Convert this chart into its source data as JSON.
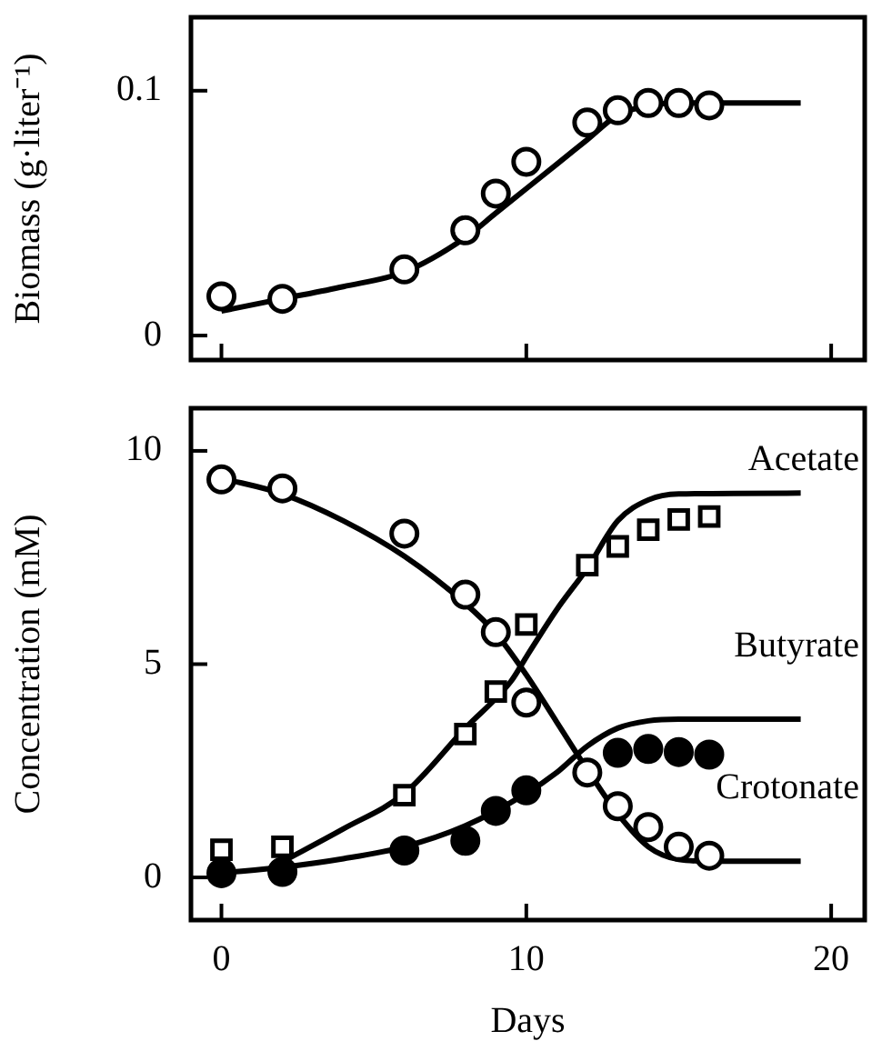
{
  "chart_data": [
    {
      "type": "scatter",
      "ylabel": "Biomass (g·liter⁻¹)",
      "xlim": [
        -1,
        21.1
      ],
      "ylim": [
        -0.01,
        0.13
      ],
      "xticks": [
        0,
        10,
        20
      ],
      "yticks": [
        0,
        0.1
      ],
      "tick_labels": "y",
      "legend": false,
      "grid": false,
      "series": [
        {
          "type": "scatter",
          "marker": "circle",
          "color": "#ffffff",
          "x": [
            0,
            2,
            6,
            8,
            9,
            10,
            12,
            13,
            14,
            15,
            16
          ],
          "values": [
            0.016,
            0.015,
            0.027,
            0.043,
            0.058,
            0.071,
            0.087,
            0.092,
            0.095,
            0.095,
            0.094
          ]
        },
        {
          "type": "line",
          "marker": "none",
          "color": "#000000",
          "x": [
            0,
            2,
            4,
            6,
            8,
            9,
            10,
            11,
            12,
            13,
            14,
            15,
            19
          ],
          "values": [
            0.01,
            0.015,
            0.02,
            0.026,
            0.04,
            0.05,
            0.06,
            0.07,
            0.08,
            0.09,
            0.094,
            0.095,
            0.095
          ]
        }
      ]
    },
    {
      "type": "scatter",
      "xlabel": "Days",
      "ylabel": "Concentration (mM)",
      "xlim": [
        -1,
        21.1
      ],
      "ylim": [
        -1,
        11
      ],
      "xticks": [
        0,
        10,
        20
      ],
      "yticks": [
        0,
        5,
        10
      ],
      "legend": false,
      "grid": false,
      "series": [
        {
          "type": "line",
          "marker": "none",
          "color": "#000000",
          "name": "Acetate",
          "x": [
            2,
            4,
            6,
            8,
            9.5,
            10,
            11,
            12,
            13,
            14,
            15,
            19
          ],
          "values": [
            0.37,
            1.14,
            1.97,
            3.5,
            4.6,
            5.17,
            6.28,
            7.25,
            8.36,
            8.85,
            8.99,
            9.01
          ]
        },
        {
          "type": "line",
          "marker": "none",
          "color": "#000000",
          "name": "Butyrate",
          "x": [
            0,
            2,
            4,
            6,
            8,
            10,
            11,
            12,
            13,
            14,
            15,
            19
          ],
          "values": [
            0.1,
            0.24,
            0.44,
            0.72,
            1.21,
            1.97,
            2.46,
            3.08,
            3.5,
            3.67,
            3.71,
            3.71
          ]
        },
        {
          "type": "line",
          "marker": "none",
          "color": "#000000",
          "name": "Crotonate",
          "x": [
            0,
            2,
            4,
            6,
            8,
            9,
            10,
            11,
            12,
            13,
            14,
            15,
            16,
            19
          ],
          "values": [
            9.36,
            8.99,
            8.36,
            7.53,
            6.42,
            5.72,
            4.75,
            3.64,
            2.53,
            1.49,
            0.72,
            0.42,
            0.38,
            0.38
          ]
        },
        {
          "type": "scatter",
          "marker": "square",
          "color": "#ffffff",
          "x": [
            0,
            2,
            6,
            8,
            9,
            10,
            12,
            13,
            14,
            15,
            16
          ],
          "values": [
            0.65,
            0.72,
            1.93,
            3.36,
            4.36,
            5.93,
            7.32,
            7.76,
            8.15,
            8.39,
            8.46
          ]
        },
        {
          "type": "scatter",
          "marker": "circle",
          "color": "#000000",
          "x": [
            0,
            2,
            6,
            8,
            9,
            10,
            13,
            14,
            15,
            16
          ],
          "values": [
            0.1,
            0.13,
            0.63,
            0.86,
            1.56,
            2.04,
            2.92,
            3.01,
            2.94,
            2.88
          ]
        },
        {
          "type": "scatter",
          "marker": "circle",
          "color": "#ffffff",
          "x": [
            0,
            2,
            6,
            8,
            9,
            10,
            12,
            13,
            14,
            15,
            16
          ],
          "values": [
            9.33,
            9.12,
            8.06,
            6.63,
            5.75,
            4.1,
            2.46,
            1.67,
            1.18,
            0.72,
            0.51
          ]
        }
      ]
    }
  ]
}
